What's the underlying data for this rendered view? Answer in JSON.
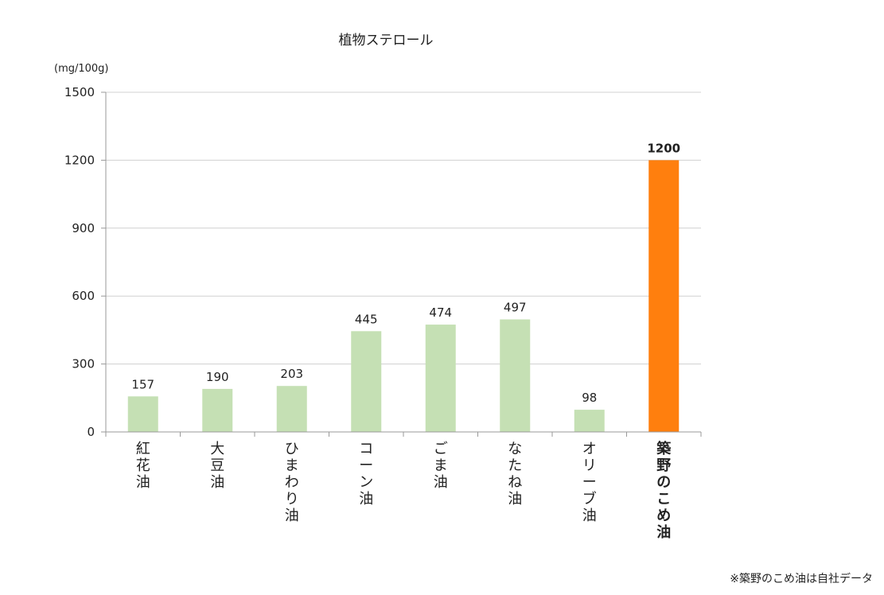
{
  "chart_data": {
    "type": "bar",
    "title": "植物ステロール",
    "ylabel": "(mg/100g)",
    "ylim": [
      0,
      1500
    ],
    "yticks": [
      0,
      300,
      600,
      900,
      1200,
      1500
    ],
    "grid": true,
    "categories": [
      "紅花油",
      "大豆油",
      "ひまわり油",
      "コーン油",
      "ごま油",
      "なたね油",
      "オリーブ油",
      "築野のこめ油"
    ],
    "values": [
      157,
      190,
      203,
      445,
      474,
      497,
      98,
      1200
    ],
    "highlight_index": 7,
    "colors": {
      "default": "#c5e0b4",
      "highlight": "#ff7f0e"
    }
  },
  "footnote": "※築野のこめ油は自社データ"
}
